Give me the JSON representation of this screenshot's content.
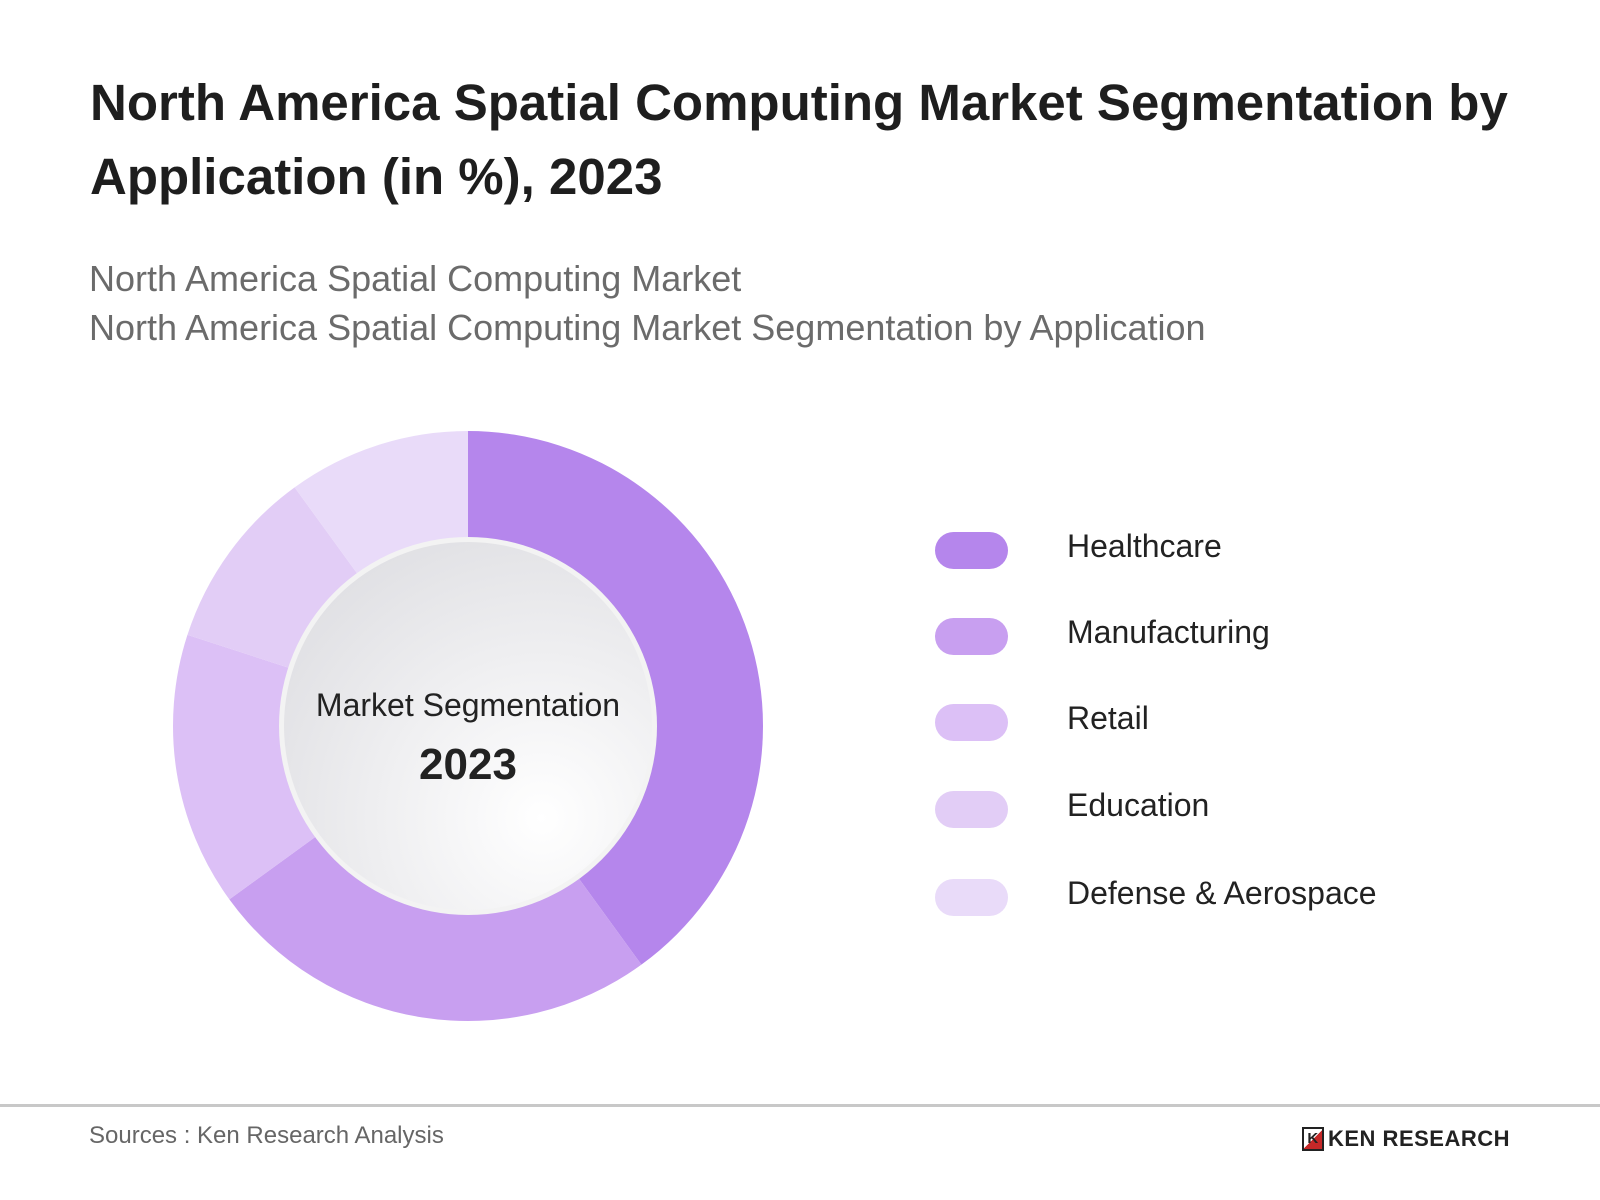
{
  "title": "North America Spatial Computing Market Segmentation by Application (in %), 2023",
  "subtitle_1": "North America Spatial Computing Market",
  "subtitle_2": "North America Spatial Computing Market Segmentation by Application",
  "center_label": "Market Segmentation",
  "center_year": "2023",
  "source": "Sources : Ken Research Analysis",
  "logo_text": "KEN RESEARCH",
  "chart_data": {
    "type": "pie",
    "variant": "donut",
    "title": "North America Spatial Computing Market Segmentation by Application (in %), 2023",
    "categories": [
      "Healthcare",
      "Manufacturing",
      "Retail",
      "Education",
      "Defense & Aerospace"
    ],
    "values": [
      40,
      25,
      15,
      10,
      10
    ],
    "colors": [
      "#b586ec",
      "#c89ff0",
      "#dcc0f6",
      "#e2cdf6",
      "#e9dbf9"
    ],
    "legend_position": "right",
    "data_labels": false
  }
}
